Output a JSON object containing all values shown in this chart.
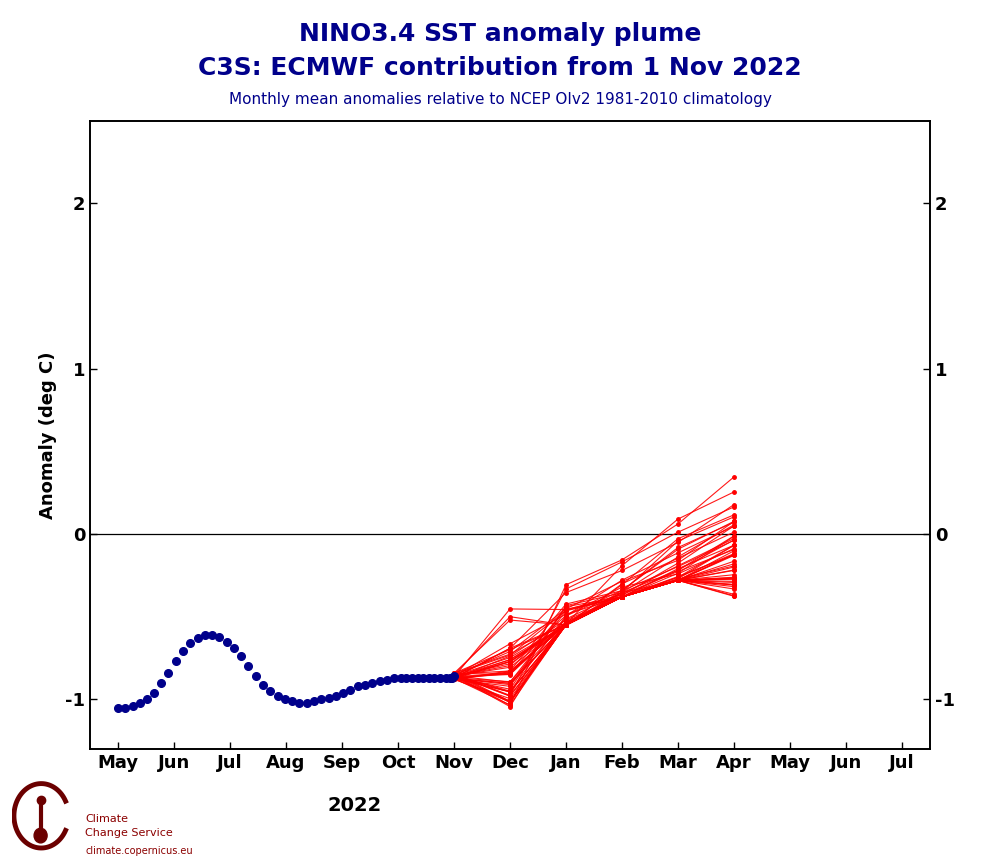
{
  "title_line1": "NINO3.4 SST anomaly plume",
  "title_line2": "C3S: ECMWF contribution from 1 Nov 2022",
  "subtitle": "Monthly mean anomalies relative to NCEP OIv2 1981-2010 climatology",
  "title_color": "#00008B",
  "subtitle_color": "#00008B",
  "ylabel": "Anomaly (deg C)",
  "ylim": [
    -1.3,
    2.5
  ],
  "yticks": [
    -1,
    0,
    1,
    2
  ],
  "background_color": "#ffffff",
  "obs_color": "#00008B",
  "forecast_color": "#FF0000",
  "x_tick_labels": [
    "May",
    "Jun",
    "Jul",
    "Aug",
    "Sep",
    "Oct",
    "Nov",
    "Dec",
    "Jan",
    "Feb",
    "Mar",
    "Apr",
    "May",
    "Jun",
    "Jul"
  ],
  "x_tick_positions": [
    0,
    1,
    2,
    3,
    4,
    5,
    6,
    7,
    8,
    9,
    10,
    11,
    12,
    13,
    14
  ],
  "year_label": "2022",
  "year_label_xpos": 3.5,
  "obs_x": [
    0.0,
    0.13,
    0.26,
    0.39,
    0.52,
    0.65,
    0.77,
    0.9,
    1.03,
    1.16,
    1.29,
    1.42,
    1.55,
    1.68,
    1.81,
    1.94,
    2.07,
    2.2,
    2.33,
    2.46,
    2.59,
    2.72,
    2.85,
    2.98,
    3.11,
    3.24,
    3.37,
    3.5,
    3.63,
    3.76,
    3.89,
    4.02,
    4.15,
    4.28,
    4.41,
    4.54,
    4.67,
    4.8,
    4.93,
    5.05,
    5.15,
    5.25,
    5.35,
    5.45,
    5.55,
    5.65,
    5.75,
    5.85,
    5.92,
    5.97,
    6.0
  ],
  "obs_y": [
    -1.05,
    -1.05,
    -1.04,
    -1.02,
    -1.0,
    -0.96,
    -0.9,
    -0.84,
    -0.77,
    -0.71,
    -0.66,
    -0.63,
    -0.61,
    -0.61,
    -0.62,
    -0.65,
    -0.69,
    -0.74,
    -0.8,
    -0.86,
    -0.91,
    -0.95,
    -0.98,
    -1.0,
    -1.01,
    -1.02,
    -1.02,
    -1.01,
    -1.0,
    -0.99,
    -0.98,
    -0.96,
    -0.94,
    -0.92,
    -0.91,
    -0.9,
    -0.89,
    -0.88,
    -0.87,
    -0.87,
    -0.87,
    -0.87,
    -0.87,
    -0.87,
    -0.87,
    -0.87,
    -0.87,
    -0.87,
    -0.87,
    -0.87,
    -0.86
  ],
  "forecast_x": [
    6,
    7,
    8,
    9,
    10,
    11
  ],
  "num_members": 51,
  "title_fontsize": 18,
  "subtitle_fontsize": 11,
  "tick_fontsize": 13,
  "ylabel_fontsize": 13,
  "year_fontsize": 14
}
